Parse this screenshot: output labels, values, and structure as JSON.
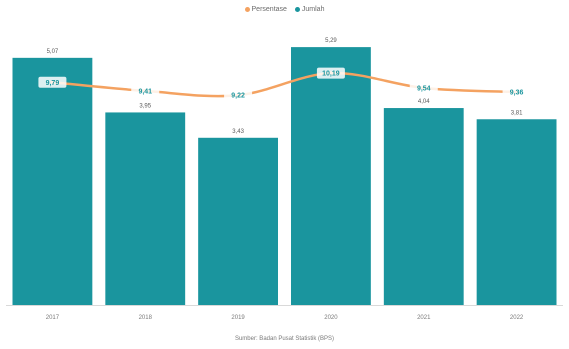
{
  "chart_data": {
    "type": "bar",
    "categories": [
      "2017",
      "2018",
      "2019",
      "2020",
      "2021",
      "2022"
    ],
    "series": [
      {
        "name": "Persentase",
        "chart": "line",
        "color": "#F4A261",
        "values": [
          9.79,
          9.41,
          9.22,
          10.19,
          9.54,
          9.36
        ]
      },
      {
        "name": "Jumlah",
        "chart": "bar",
        "color": "#1A959E",
        "values": [
          5.07,
          3.95,
          3.43,
          5.29,
          4.04,
          3.81
        ]
      }
    ],
    "line_point_labels": [
      "9,79",
      "9,41",
      "9,22",
      "10,19",
      "9,54",
      "9,36"
    ],
    "bar_value_labels": [
      "5,07",
      "3,95",
      "3,43",
      "5,29",
      "4,04",
      "3,81"
    ],
    "ylim": [
      0,
      5.6
    ],
    "line_ylim": [
      0,
      12
    ],
    "grid": false,
    "legend_position": "top",
    "source": "Sumber: Badan Pusat Statistik (BPS)"
  }
}
